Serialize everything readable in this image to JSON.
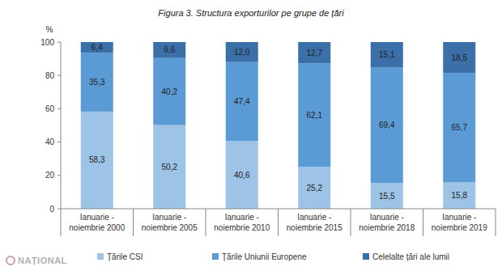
{
  "chart_data": {
    "type": "bar",
    "title": "Figura 3. Structura exporturilor pe grupe de țări",
    "ylabel": "%",
    "categories": [
      "Ianuarie - noiembrie 2000",
      "Ianuarie - noiembrie 2005",
      "Ianuarie - noiembrie 2010",
      "Ianuarie - noiembrie 2015",
      "Ianuarie - noiembrie 2018",
      "Ianuarie - noiembrie 2019"
    ],
    "series": [
      {
        "name": "Țările CSI",
        "color": "#9dc3e6",
        "values": [
          58.3,
          50.2,
          40.6,
          25.2,
          15.5,
          15.8
        ],
        "value_labels": [
          "58,3",
          "50,2",
          "40,6",
          "25,2",
          "15,5",
          "15,8"
        ]
      },
      {
        "name": "Țările Uniunii Europene",
        "color": "#5b9bd5",
        "values": [
          35.3,
          40.2,
          47.4,
          62.1,
          69.4,
          65.7
        ],
        "value_labels": [
          "35,3",
          "40,2",
          "47,4",
          "62,1",
          "69,4",
          "65,7"
        ]
      },
      {
        "name": "Celelalte țări ale lumii",
        "color": "#3a6fa8",
        "values": [
          6.4,
          9.6,
          12.0,
          12.7,
          15.1,
          18.5
        ],
        "value_labels": [
          "6,4",
          "9,6",
          "12,0",
          "12,7",
          "15,1",
          "18,5"
        ]
      }
    ],
    "ylim": [
      0,
      100
    ],
    "yticks": [
      0,
      20,
      40,
      60,
      80,
      100
    ],
    "stacked": true,
    "data_labels": true,
    "grid": false,
    "legend": "bottom",
    "annotations": [
      "NAȚIONAL"
    ]
  }
}
